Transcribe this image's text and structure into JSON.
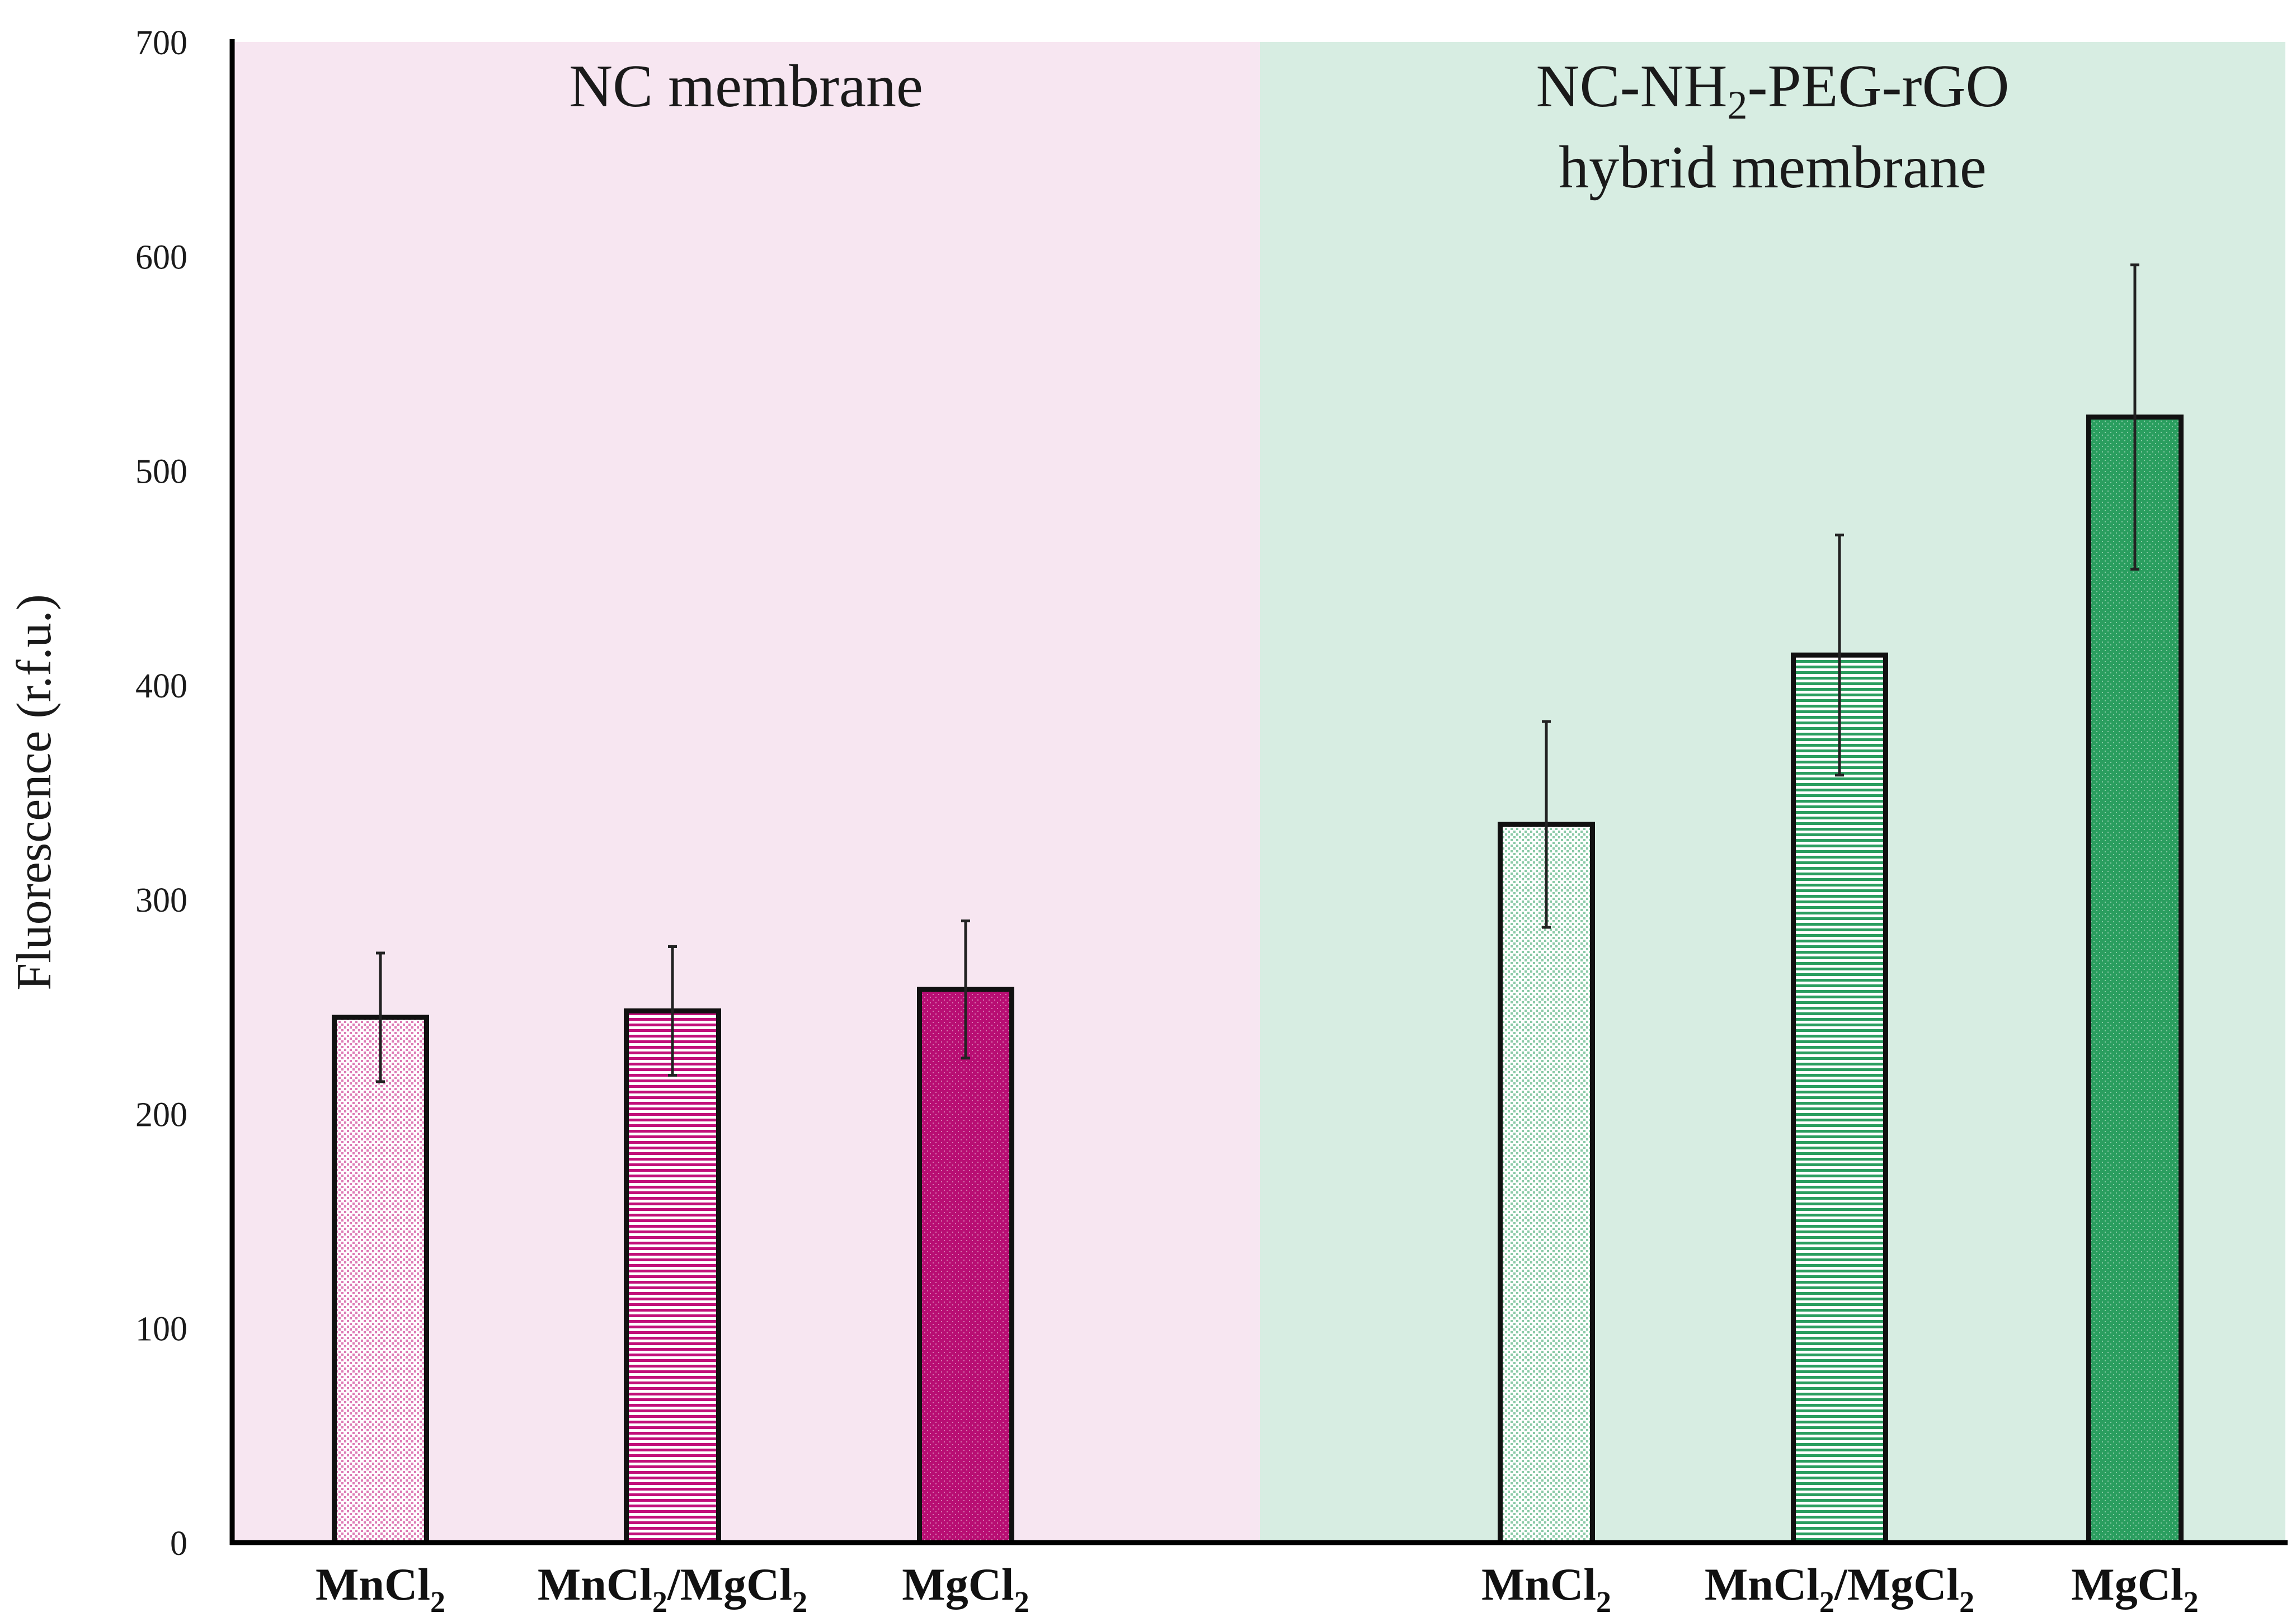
{
  "chart_data": {
    "type": "bar",
    "title": "",
    "xlabel": "",
    "ylabel": "Fluorescence (r.f.u.)",
    "ylim": [
      0,
      700
    ],
    "yticks": [
      0,
      100,
      200,
      300,
      400,
      500,
      600,
      700
    ],
    "grid": false,
    "panels": [
      {
        "title_lines": [
          "NC membrane"
        ],
        "color": "#f7e6f1",
        "bars": [
          {
            "label": "MnCl",
            "sub": "2",
            "value": 245,
            "error": 30,
            "pattern": "dots",
            "color": "#c2107a"
          },
          {
            "label": "MnCl",
            "sub": "2",
            "label2": "/MgCl",
            "sub2": "2",
            "value": 248,
            "error": 30,
            "pattern": "stripes",
            "color": "#c2107a"
          },
          {
            "label": "MgCl",
            "sub": "2",
            "value": 258,
            "error": 32,
            "pattern": "solid",
            "color": "#b80e73"
          }
        ]
      },
      {
        "title_lines": [
          {
            "pre": "NC-NH",
            "sub": "2",
            "post": "-PEG-rGO"
          },
          {
            "pre": "hybrid membrane",
            "sub": "",
            "post": ""
          }
        ],
        "color": "#d7ede2",
        "bars": [
          {
            "label": "MnCl",
            "sub": "2",
            "value": 335,
            "error": 48,
            "pattern": "dots",
            "color": "#2a9e5f"
          },
          {
            "label": "MnCl",
            "sub": "2",
            "label2": "/MgCl",
            "sub2": "2",
            "value": 414,
            "error": 56,
            "pattern": "stripes",
            "color": "#2a9e5f"
          },
          {
            "label": "MgCl",
            "sub": "2",
            "value": 525,
            "error": 71,
            "pattern": "solid",
            "color": "#2a9e5f"
          }
        ]
      }
    ]
  }
}
